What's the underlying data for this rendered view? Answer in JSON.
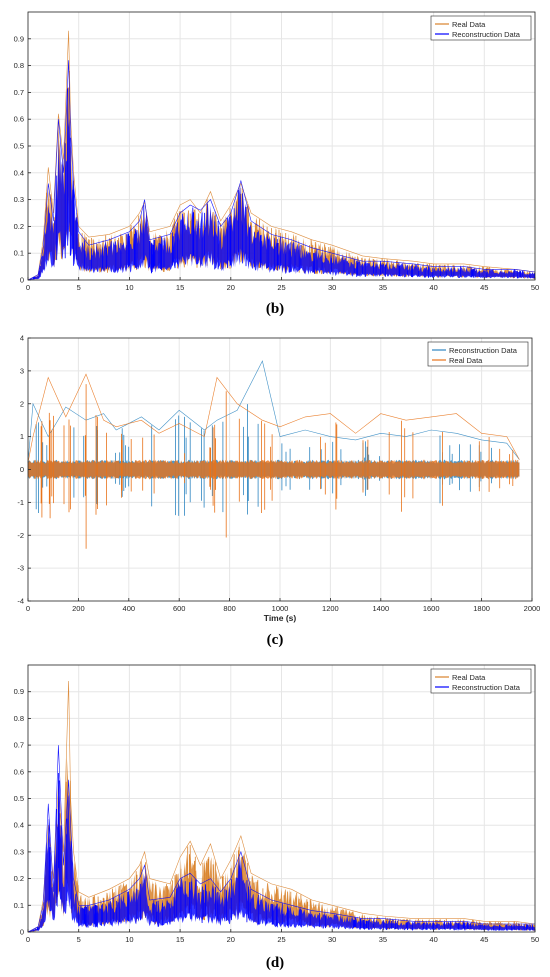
{
  "chart_data": [
    {
      "type": "line",
      "caption": "(b)",
      "xlabel": "",
      "ylabel": "",
      "xlim": [
        0,
        50
      ],
      "ylim": [
        0,
        1
      ],
      "xticks": [
        0,
        5,
        10,
        15,
        20,
        25,
        30,
        35,
        40,
        45,
        50
      ],
      "yticks": [
        0,
        0.1,
        0.2,
        0.3,
        0.4,
        0.5,
        0.6,
        0.7,
        0.8,
        0.9
      ],
      "ytick_labels": [
        "0",
        "0.1",
        "0.2",
        "0.3",
        "0.4",
        "0.5",
        "0.6",
        "0.7",
        "0.8",
        "0.9"
      ],
      "grid": true,
      "legend_position": "top-right",
      "legend": [
        "Real Data",
        "Reconstruction Data"
      ],
      "series": [
        {
          "name": "Real Data",
          "color": "#D9822B",
          "x": [
            0,
            1,
            1.5,
            2,
            2.5,
            3,
            3.5,
            4,
            4.2,
            4.5,
            5,
            6,
            8,
            10,
            11,
            11.5,
            12,
            14,
            15,
            16,
            17,
            18,
            19,
            20,
            21,
            22,
            24,
            26,
            28,
            30,
            33,
            35,
            38,
            40,
            43,
            45,
            48,
            50
          ],
          "y": [
            0,
            0.02,
            0.15,
            0.42,
            0.25,
            0.62,
            0.45,
            0.93,
            0.6,
            0.4,
            0.2,
            0.16,
            0.17,
            0.2,
            0.25,
            0.29,
            0.18,
            0.2,
            0.28,
            0.3,
            0.25,
            0.33,
            0.22,
            0.28,
            0.36,
            0.25,
            0.2,
            0.18,
            0.15,
            0.13,
            0.09,
            0.08,
            0.07,
            0.06,
            0.06,
            0.05,
            0.04,
            0.03
          ]
        },
        {
          "name": "Reconstruction Data",
          "color": "#0000FF",
          "x": [
            0,
            1,
            1.5,
            2,
            2.5,
            3,
            3.5,
            4,
            4.2,
            4.5,
            5,
            6,
            8,
            10,
            11,
            11.5,
            12,
            14,
            15,
            16,
            17,
            18,
            19,
            20,
            21,
            22,
            24,
            26,
            28,
            30,
            33,
            35,
            38,
            40,
            43,
            45,
            48,
            50
          ],
          "y": [
            0,
            0.02,
            0.12,
            0.36,
            0.22,
            0.6,
            0.4,
            0.82,
            0.55,
            0.35,
            0.18,
            0.13,
            0.15,
            0.18,
            0.22,
            0.3,
            0.15,
            0.17,
            0.25,
            0.28,
            0.26,
            0.3,
            0.2,
            0.25,
            0.37,
            0.22,
            0.17,
            0.15,
            0.12,
            0.1,
            0.07,
            0.07,
            0.06,
            0.05,
            0.05,
            0.04,
            0.04,
            0.03
          ]
        }
      ]
    },
    {
      "type": "line",
      "caption": "(c)",
      "xlabel": "Time (s)",
      "ylabel": "",
      "xlim": [
        0,
        2000
      ],
      "ylim": [
        -4,
        4
      ],
      "xticks": [
        0,
        200,
        400,
        600,
        800,
        1000,
        1200,
        1400,
        1600,
        1800,
        2000
      ],
      "yticks": [
        -4,
        -3,
        -2,
        -1,
        0,
        1,
        2,
        3,
        4
      ],
      "ytick_labels": [
        "-4",
        "-3",
        "-2",
        "-1",
        "0",
        "1",
        "2",
        "3",
        "4"
      ],
      "grid": true,
      "legend_position": "top-right",
      "legend": [
        "Reconstruction Data",
        "Real Data"
      ],
      "series": [
        {
          "name": "Reconstruction Data",
          "color": "#2E86C1",
          "x": [
            0,
            20,
            80,
            150,
            230,
            300,
            350,
            450,
            520,
            600,
            700,
            750,
            830,
            930,
            1000,
            1100,
            1200,
            1300,
            1400,
            1500,
            1600,
            1700,
            1800,
            1900,
            1950
          ],
          "y": [
            0.2,
            2.0,
            1.0,
            1.9,
            1.5,
            1.7,
            1.2,
            1.6,
            1.2,
            1.8,
            1.2,
            1.5,
            1.8,
            3.3,
            1.0,
            1.2,
            1.0,
            0.9,
            1.1,
            1.0,
            1.2,
            1.1,
            0.9,
            0.8,
            0.3
          ]
        },
        {
          "name": "Real Data",
          "color": "#E8731A",
          "x": [
            0,
            20,
            80,
            150,
            230,
            300,
            350,
            450,
            520,
            600,
            700,
            750,
            830,
            930,
            1000,
            1100,
            1200,
            1300,
            1400,
            1500,
            1600,
            1700,
            1800,
            1900,
            1950
          ],
          "y": [
            0.2,
            1.0,
            2.8,
            1.6,
            2.9,
            1.5,
            1.3,
            1.5,
            1.1,
            1.4,
            1.0,
            2.8,
            2.0,
            1.5,
            1.3,
            1.6,
            1.7,
            1.1,
            1.7,
            1.5,
            1.6,
            1.7,
            1.1,
            1.0,
            0.3
          ]
        }
      ]
    },
    {
      "type": "line",
      "caption": "(d)",
      "xlabel": "",
      "ylabel": "",
      "xlim": [
        0,
        50
      ],
      "ylim": [
        0,
        1
      ],
      "xticks": [
        0,
        5,
        10,
        15,
        20,
        25,
        30,
        35,
        40,
        45,
        50
      ],
      "yticks": [
        0,
        0.1,
        0.2,
        0.3,
        0.4,
        0.5,
        0.6,
        0.7,
        0.8,
        0.9
      ],
      "ytick_labels": [
        "0",
        "0.1",
        "0.2",
        "0.3",
        "0.4",
        "0.5",
        "0.6",
        "0.7",
        "0.8",
        "0.9"
      ],
      "grid": true,
      "legend_position": "top-right",
      "legend": [
        "Real Data",
        "Reconstruction Data"
      ],
      "series": [
        {
          "name": "Real Data",
          "color": "#D9822B",
          "x": [
            0,
            1,
            1.5,
            2,
            2.5,
            3,
            3.5,
            4,
            4.2,
            4.5,
            5,
            6,
            8,
            10,
            11,
            11.5,
            12,
            14,
            15,
            16,
            17,
            18,
            19,
            20,
            21,
            22,
            24,
            26,
            28,
            30,
            33,
            35,
            38,
            40,
            43,
            45,
            48,
            50
          ],
          "y": [
            0,
            0.02,
            0.12,
            0.4,
            0.2,
            0.55,
            0.3,
            0.94,
            0.5,
            0.3,
            0.15,
            0.13,
            0.16,
            0.2,
            0.25,
            0.3,
            0.2,
            0.18,
            0.28,
            0.34,
            0.25,
            0.33,
            0.2,
            0.27,
            0.36,
            0.22,
            0.18,
            0.16,
            0.12,
            0.1,
            0.07,
            0.06,
            0.05,
            0.05,
            0.05,
            0.04,
            0.04,
            0.03
          ]
        },
        {
          "name": "Reconstruction Data",
          "color": "#0000FF",
          "x": [
            0,
            1,
            1.5,
            2,
            2.5,
            3,
            3.5,
            4,
            4.2,
            4.5,
            5,
            6,
            8,
            10,
            11,
            11.5,
            12,
            14,
            15,
            16,
            17,
            18,
            19,
            20,
            21,
            22,
            24,
            26,
            28,
            30,
            33,
            35,
            38,
            40,
            43,
            45,
            48,
            50
          ],
          "y": [
            0,
            0.02,
            0.1,
            0.48,
            0.15,
            0.7,
            0.25,
            0.57,
            0.4,
            0.2,
            0.1,
            0.1,
            0.12,
            0.16,
            0.2,
            0.25,
            0.12,
            0.13,
            0.2,
            0.22,
            0.18,
            0.2,
            0.15,
            0.2,
            0.3,
            0.16,
            0.12,
            0.1,
            0.08,
            0.07,
            0.05,
            0.05,
            0.04,
            0.04,
            0.04,
            0.03,
            0.03,
            0.03
          ]
        }
      ]
    }
  ]
}
